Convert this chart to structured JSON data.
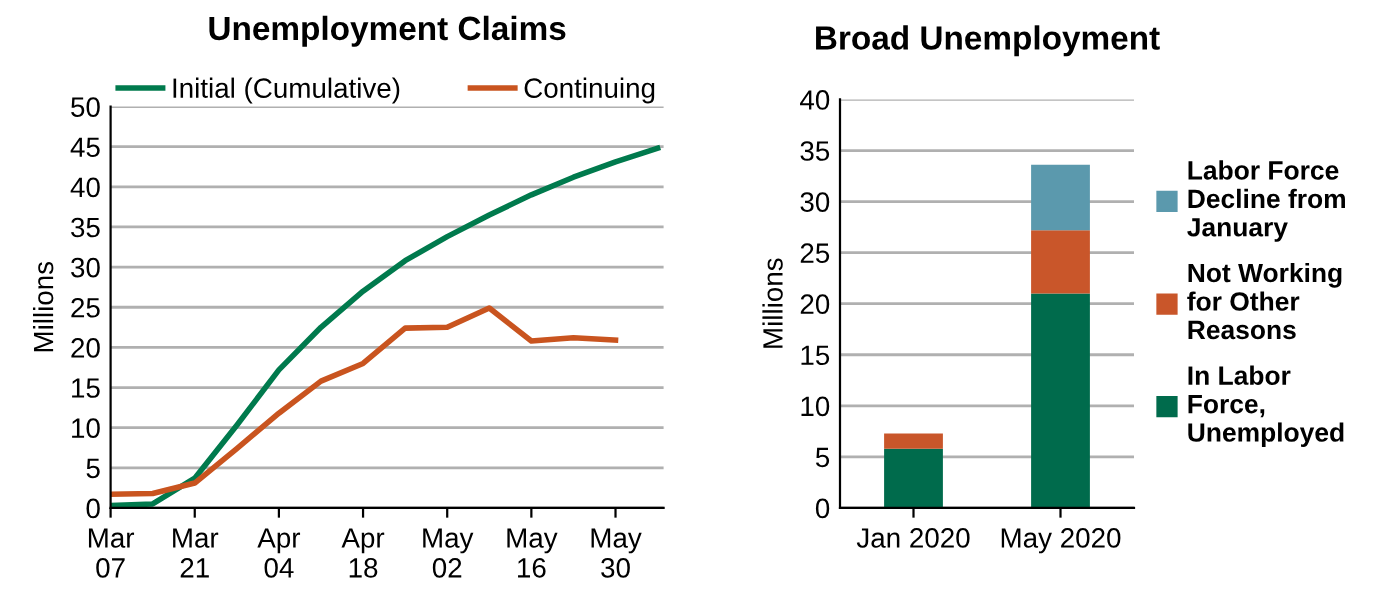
{
  "chart_data": [
    {
      "type": "line",
      "title": "Unemployment Claims",
      "ylabel": "Millions",
      "x": [
        "2020-03-07",
        "2020-03-14",
        "2020-03-21",
        "2020-03-28",
        "2020-04-04",
        "2020-04-11",
        "2020-04-18",
        "2020-04-25",
        "2020-05-02",
        "2020-05-09",
        "2020-05-16",
        "2020-05-23",
        "2020-05-30",
        "2020-06-06"
      ],
      "series": [
        {
          "name": "Initial (Cumulative)",
          "color": "#007a4d",
          "values": [
            0.3,
            0.5,
            3.7,
            10.3,
            17.2,
            22.5,
            27,
            30.8,
            33.8,
            36.5,
            39,
            41.2,
            43.1,
            44.8
          ]
        },
        {
          "name": "Continuing",
          "color": "#c9541f",
          "values": [
            1.7,
            1.8,
            3.1,
            7.4,
            11.8,
            15.8,
            18,
            22.4,
            22.5,
            24.9,
            20.8,
            21.2,
            20.9,
            null
          ]
        }
      ],
      "xlim": [
        "2020-03-07",
        "2020-06-07"
      ],
      "xticks": [
        {
          "value": "2020-03-07",
          "label": "Mar\n07"
        },
        {
          "value": "2020-03-21",
          "label": "Mar\n21"
        },
        {
          "value": "2020-04-04",
          "label": "Apr\n04"
        },
        {
          "value": "2020-04-18",
          "label": "Apr\n18"
        },
        {
          "value": "2020-05-02",
          "label": "May\n02"
        },
        {
          "value": "2020-05-16",
          "label": "May\n16"
        },
        {
          "value": "2020-05-30",
          "label": "May\n30"
        }
      ],
      "ylim": [
        0,
        50
      ],
      "yticks": [
        0,
        5,
        10,
        15,
        20,
        25,
        30,
        35,
        40,
        45,
        50
      ],
      "grid": "y",
      "legend": "top",
      "line_style": "solid",
      "marker": "none"
    },
    {
      "type": "bar",
      "stacked": true,
      "title": "Broad Unemployment",
      "ylabel": "Millions",
      "categories": [
        "Jan 2020",
        "May 2020"
      ],
      "series": [
        {
          "name": "In Labor\nForce,\nUnemployed",
          "color": "#006b4c",
          "values": [
            5.8,
            21
          ]
        },
        {
          "name": "Not Working\nfor Other\nReasons",
          "color": "#c9562a",
          "values": [
            1.5,
            6.2
          ]
        },
        {
          "name": "Labor Force\nDecline from\nJanuary",
          "color": "#5b99ad",
          "values": [
            null,
            6.4
          ]
        }
      ],
      "ylim": [
        0,
        40
      ],
      "yticks": [
        0,
        5,
        10,
        15,
        20,
        25,
        30,
        35,
        40
      ],
      "grid": "y",
      "legend": "right"
    }
  ]
}
